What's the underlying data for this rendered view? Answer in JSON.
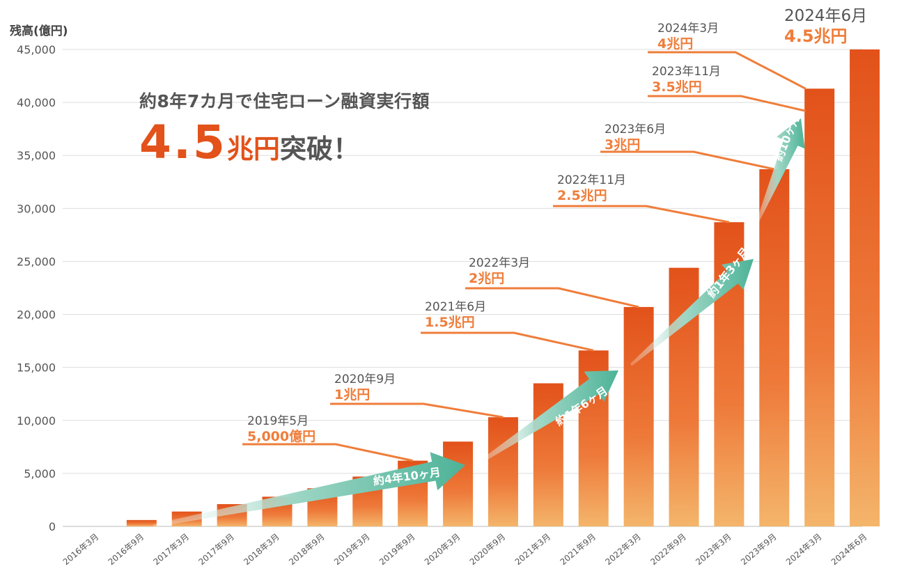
{
  "chart_data": {
    "type": "bar",
    "ylabel": "残高(億円)",
    "ylim": [
      0,
      45000
    ],
    "yticks": [
      0,
      5000,
      10000,
      15000,
      20000,
      25000,
      30000,
      35000,
      40000,
      45000
    ],
    "ytick_labels": [
      "0",
      "5,000",
      "10,000",
      "15,000",
      "20,000",
      "25,000",
      "30,000",
      "35,000",
      "40,000",
      "45,000"
    ],
    "categories": [
      "2016年3月",
      "2016年9月",
      "2017年3月",
      "2017年9月",
      "2018年3月",
      "2018年9月",
      "2019年3月",
      "2019年9月",
      "2020年3月",
      "2020年9月",
      "2021年3月",
      "2021年9月",
      "2022年3月",
      "2022年9月",
      "2023年3月",
      "2023年9月",
      "2024年3月",
      "2024年6月"
    ],
    "values": [
      0,
      600,
      1400,
      2100,
      2800,
      3600,
      4700,
      6200,
      8000,
      10300,
      13500,
      16600,
      20700,
      24400,
      28700,
      33700,
      41300,
      45000
    ],
    "colors": {
      "bar_top": "#e2521a",
      "bar_bottom": "#f4b56b",
      "accent": "#e2521a",
      "milestone_line": "#ef7d3a",
      "arrow": "#4db398",
      "grid": "#dddddd",
      "text": "#555555"
    },
    "milestones": [
      {
        "date": "2019年5月",
        "amount": "5,000億円",
        "bar": 7
      },
      {
        "date": "2020年9月",
        "amount": "1兆円",
        "bar": 9
      },
      {
        "date": "2021年6月",
        "amount": "1.5兆円",
        "bar": 11
      },
      {
        "date": "2022年3月",
        "amount": "2兆円",
        "bar": 12
      },
      {
        "date": "2022年11月",
        "amount": "2.5兆円",
        "bar": 14
      },
      {
        "date": "2023年6月",
        "amount": "3兆円",
        "bar": 15
      },
      {
        "date": "2023年11月",
        "amount": "3.5兆円",
        "bar": 16
      },
      {
        "date": "2024年3月",
        "amount": "4兆円",
        "bar": 16
      },
      {
        "date": "2024年6月",
        "amount": "4.5兆円",
        "bar": 17
      }
    ],
    "arrows": [
      {
        "label": "約4年10ヶ月"
      },
      {
        "label": "約1年6ヶ月"
      },
      {
        "label": "約1年3ヶ月"
      },
      {
        "label": "約10ヶ月"
      }
    ]
  },
  "headline": {
    "line1": "約8年7カ月で住宅ローン融資実行額",
    "amount": "4.5",
    "unit": "兆円",
    "suffix": "突破！"
  }
}
